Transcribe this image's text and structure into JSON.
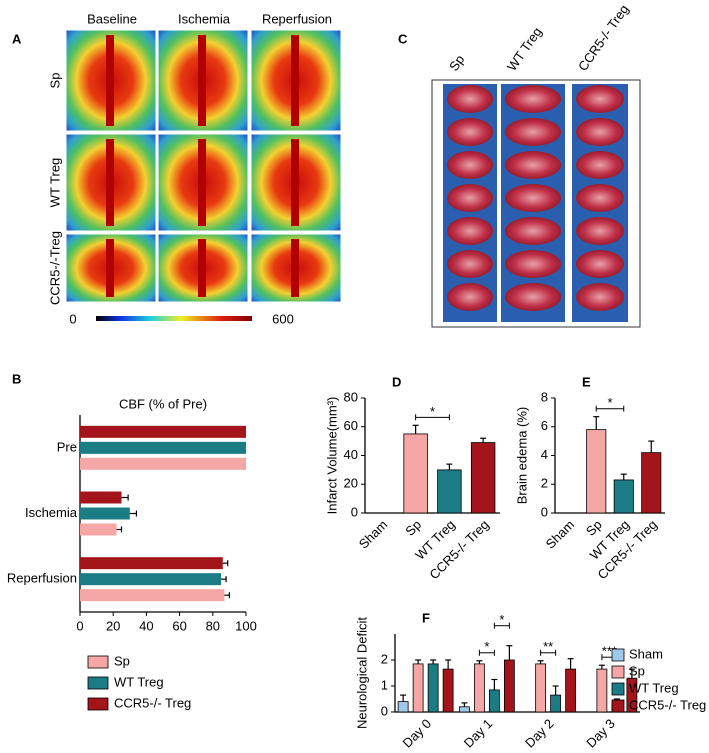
{
  "figure_a": {
    "label": "A",
    "columns": [
      "Baseline",
      "Ischemia",
      "Reperfusion"
    ],
    "rows": [
      "Sp",
      "WT Treg",
      "CCR5-/-Treg"
    ],
    "colorbar": {
      "min": 0,
      "max": 600
    }
  },
  "figure_c": {
    "label": "C",
    "columns": [
      "Sp",
      "WT Treg",
      "CCR5-/- Treg"
    ]
  },
  "chart_data": [
    {
      "type": "bar",
      "panel": "B",
      "orientation": "horizontal",
      "title": "CBF (% of Pre)",
      "categories": [
        "Pre",
        "Ischemia",
        "Reperfusion"
      ],
      "series": [
        {
          "name": "Sp",
          "color": "#f4a7a4",
          "values": [
            100,
            22,
            87
          ],
          "errors": [
            0,
            3,
            3
          ]
        },
        {
          "name": "WT Treg",
          "color": "#1b7c86",
          "values": [
            100,
            30,
            85
          ],
          "errors": [
            0,
            4,
            3
          ]
        },
        {
          "name": "CCR5-/- Treg",
          "color": "#a3151b",
          "values": [
            100,
            25,
            86
          ],
          "errors": [
            0,
            4,
            3
          ]
        }
      ],
      "xlim": [
        0,
        100
      ],
      "xticks": [
        0,
        20,
        40,
        60,
        80,
        100
      ],
      "legend": "bottom"
    },
    {
      "type": "bar",
      "panel": "D",
      "ylabel": "Infarct Volume(mm³)",
      "categories": [
        "Sham",
        "Sp",
        "WT Treg",
        "CCR5-/- Treg"
      ],
      "values": [
        0,
        55,
        30,
        49
      ],
      "errors": [
        0,
        6,
        4,
        3
      ],
      "colors": [
        "#9fc9ea",
        "#f4a7a4",
        "#1b7c86",
        "#a3151b"
      ],
      "ylim": [
        0,
        80
      ],
      "yticks": [
        0,
        20,
        40,
        60,
        80
      ],
      "annotations": [
        {
          "text": "*",
          "from": 1,
          "to": 2
        }
      ]
    },
    {
      "type": "bar",
      "panel": "E",
      "ylabel": "Brain edema (%)",
      "categories": [
        "Sham",
        "Sp",
        "WT Treg",
        "CCR5-/- Treg"
      ],
      "values": [
        0,
        5.8,
        2.3,
        4.2
      ],
      "errors": [
        0,
        0.9,
        0.4,
        0.8
      ],
      "colors": [
        "#9fc9ea",
        "#f4a7a4",
        "#1b7c86",
        "#a3151b"
      ],
      "ylim": [
        0,
        8
      ],
      "yticks": [
        0,
        2,
        4,
        6,
        8
      ],
      "annotations": [
        {
          "text": "*",
          "from": 1,
          "to": 2
        }
      ]
    },
    {
      "type": "bar",
      "panel": "F",
      "ylabel": "Neurological Deficit",
      "categories": [
        "Day 0",
        "Day 1",
        "Day 2",
        "Day 3"
      ],
      "series": [
        {
          "name": "Sham",
          "color": "#9fc9ea",
          "values": [
            0.4,
            0.2,
            0,
            0
          ],
          "errors": [
            0.25,
            0.15,
            0,
            0
          ]
        },
        {
          "name": "Sp",
          "color": "#f4a7a4",
          "values": [
            1.85,
            1.85,
            1.85,
            1.65
          ],
          "errors": [
            0.15,
            0.12,
            0.12,
            0.15
          ]
        },
        {
          "name": "WT Treg",
          "color": "#1b7c86",
          "values": [
            1.85,
            0.85,
            0.65,
            0.3
          ],
          "errors": [
            0.15,
            0.4,
            0.35,
            0.2
          ]
        },
        {
          "name": "CCR5-/- Treg",
          "color": "#a3151b",
          "values": [
            1.65,
            2.0,
            1.65,
            1.3
          ],
          "errors": [
            0.35,
            0.55,
            0.4,
            0.35
          ]
        }
      ],
      "ylim": [
        0,
        3
      ],
      "yticks": [
        0,
        1,
        2
      ],
      "legend": "right",
      "annotations": [
        {
          "text": "*",
          "category": 1,
          "from": 1,
          "to": 2
        },
        {
          "text": "*",
          "category": 1,
          "from": 2,
          "to": 3
        },
        {
          "text": "**",
          "category": 2,
          "from": 1,
          "to": 2
        },
        {
          "text": "***",
          "category": 3,
          "from": 1,
          "to": 2
        }
      ]
    }
  ]
}
